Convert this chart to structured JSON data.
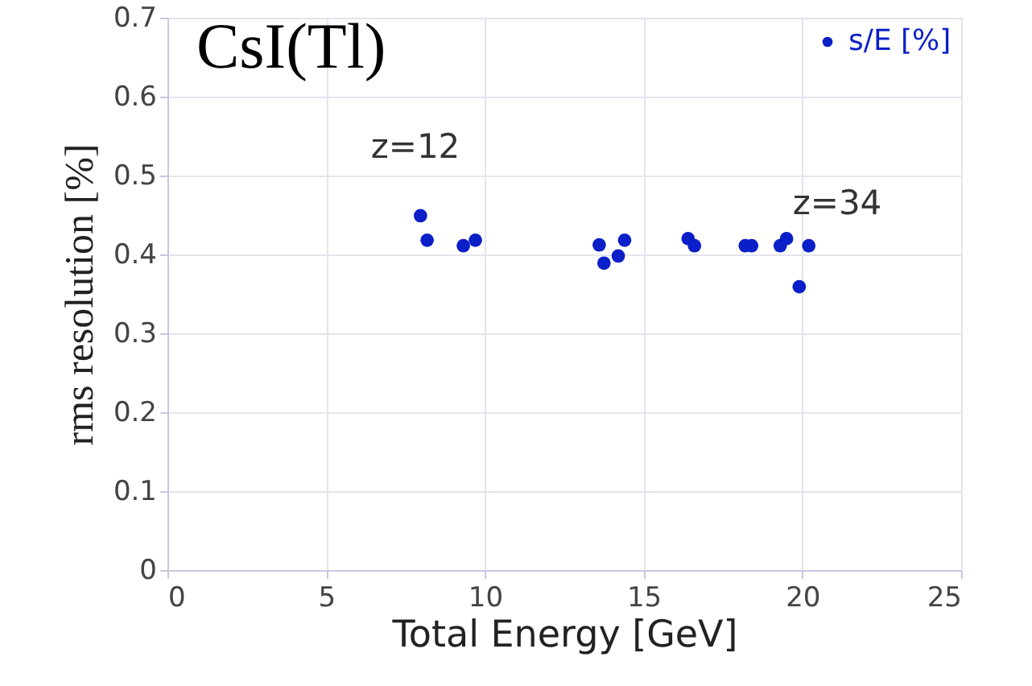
{
  "chart_data": {
    "type": "scatter",
    "title": "CsI(Tl)",
    "xlabel": "Total Energy [GeV]",
    "ylabel": "rms resolution [%]",
    "xlim": [
      0,
      25
    ],
    "xticks": [
      0,
      5,
      10,
      15,
      20,
      25
    ],
    "ylim": [
      0,
      0.7
    ],
    "yticks": [
      0,
      0.1,
      0.2,
      0.3,
      0.4,
      0.5,
      0.6,
      0.7
    ],
    "grid": true,
    "legend": "top right",
    "marker": "circle",
    "annotations": [
      "z=12",
      "z=34"
    ],
    "series": [
      {
        "name": "s/E [%]",
        "color": "#0a1fc8",
        "x": [
          7.97,
          8.18,
          9.32,
          9.7,
          13.6,
          13.75,
          14.2,
          14.4,
          16.4,
          16.6,
          18.2,
          18.4,
          19.3,
          19.5,
          20.2,
          19.9
        ],
        "values": [
          0.449,
          0.418,
          0.411,
          0.418,
          0.412,
          0.389,
          0.398,
          0.418,
          0.42,
          0.411,
          0.411,
          0.411,
          0.411,
          0.42,
          0.411,
          0.359
        ]
      }
    ]
  }
}
